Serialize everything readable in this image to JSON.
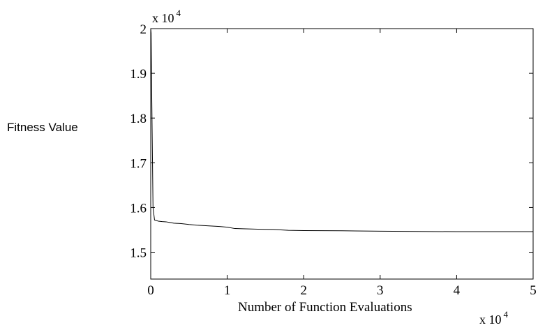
{
  "chart_data": {
    "type": "line",
    "title": "",
    "xlabel": "Number of Function Evaluations",
    "ylabel": "Fitness Value",
    "x_multiplier": {
      "base": "x 10",
      "exponent": "4"
    },
    "y_multiplier": {
      "base": "x 10",
      "exponent": "4"
    },
    "xlim": [
      0,
      5
    ],
    "ylim": [
      1.44,
      2.0
    ],
    "x_ticks": [
      0,
      1,
      2,
      3,
      4,
      5
    ],
    "x_tick_labels": [
      "0",
      "1",
      "2",
      "3",
      "4",
      "5"
    ],
    "y_ticks": [
      1.5,
      1.6,
      1.7,
      1.8,
      1.9,
      2.0
    ],
    "y_tick_labels": [
      "1.5",
      "1.6",
      "1.7",
      "1.8",
      "1.9",
      "2"
    ],
    "grid": false,
    "series": [
      {
        "x": [
          0,
          0.005,
          0.01,
          0.02,
          0.03,
          0.05,
          0.1,
          0.15,
          0.2,
          0.25,
          0.3,
          0.4,
          0.5,
          0.6,
          0.7,
          0.8,
          0.9,
          1.0,
          1.1,
          1.2,
          1.4,
          1.6,
          1.8,
          2.0,
          2.5,
          3.0,
          3.5,
          4.0,
          4.5,
          5.0
        ],
        "y": [
          2.0,
          1.99,
          1.9,
          1.75,
          1.6,
          1.572,
          1.5695,
          1.5685,
          1.568,
          1.5665,
          1.565,
          1.564,
          1.562,
          1.5605,
          1.5595,
          1.5585,
          1.5575,
          1.556,
          1.553,
          1.5525,
          1.5515,
          1.551,
          1.549,
          1.5485,
          1.548,
          1.547,
          1.5465,
          1.546,
          1.546,
          1.546
        ]
      }
    ]
  }
}
